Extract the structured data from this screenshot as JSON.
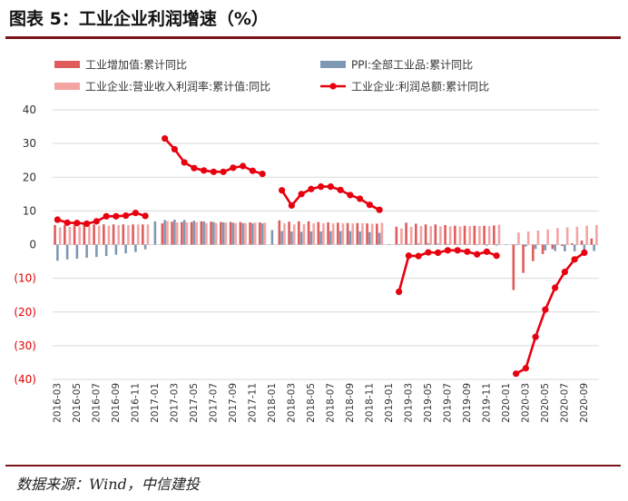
{
  "header": {
    "title": "图表 5：工业企业利润增速（%）"
  },
  "footer": {
    "source": "数据来源：Wind，中信建投"
  },
  "colors": {
    "industrial_value_added": "#e05c5c",
    "ppi": "#7f98b4",
    "revenue_profit_rate": "#f4a3a3",
    "total_profit": "#e8000f",
    "negative_tick": "#e00000",
    "positive_tick": "#333333",
    "grid": "#d9d9d9"
  },
  "chart_data": {
    "type": "bar",
    "title": "工业企业利润增速（%）",
    "ylim": [
      -40,
      40
    ],
    "yticks": [
      {
        "value": 40,
        "label": "40"
      },
      {
        "value": 30,
        "label": "30"
      },
      {
        "value": 20,
        "label": "20"
      },
      {
        "value": 10,
        "label": "10"
      },
      {
        "value": 0,
        "label": "0"
      },
      {
        "value": -10,
        "label": "(10)"
      },
      {
        "value": -20,
        "label": "(20)"
      },
      {
        "value": -30,
        "label": "(30)"
      },
      {
        "value": -40,
        "label": "(40)"
      }
    ],
    "grid": true,
    "legend_position": "top",
    "x": [
      "2016-03",
      "2016-04",
      "2016-05",
      "2016-06",
      "2016-07",
      "2016-08",
      "2016-09",
      "2016-10",
      "2016-11",
      "2016-12",
      "2017-01",
      "2017-02",
      "2017-03",
      "2017-04",
      "2017-05",
      "2017-06",
      "2017-07",
      "2017-08",
      "2017-09",
      "2017-10",
      "2017-11",
      "2017-12",
      "2018-01",
      "2018-02",
      "2018-03",
      "2018-04",
      "2018-05",
      "2018-06",
      "2018-07",
      "2018-08",
      "2018-09",
      "2018-10",
      "2018-11",
      "2018-12",
      "2019-01",
      "2019-02",
      "2019-03",
      "2019-04",
      "2019-05",
      "2019-06",
      "2019-07",
      "2019-08",
      "2019-09",
      "2019-10",
      "2019-11",
      "2019-12",
      "2020-01",
      "2020-02",
      "2020-03",
      "2020-04",
      "2020-05",
      "2020-06",
      "2020-07",
      "2020-08",
      "2020-09",
      "2020-10"
    ],
    "xtick_labels": [
      "2016-03",
      "2016-05",
      "2016-07",
      "2016-09",
      "2016-11",
      "2017-01",
      "2017-03",
      "2017-05",
      "2017-07",
      "2017-09",
      "2017-11",
      "2018-01",
      "2018-03",
      "2018-05",
      "2018-07",
      "2018-09",
      "2018-11",
      "2019-01",
      "2019-03",
      "2019-05",
      "2019-07",
      "2019-09",
      "2019-11",
      "2020-01",
      "2020-03",
      "2020-05",
      "2020-07",
      "2020-09"
    ],
    "series": [
      {
        "name": "工业增加值:累计同比",
        "type": "bar",
        "values": [
          5.8,
          5.8,
          5.9,
          6.0,
          6.0,
          6.0,
          6.0,
          6.0,
          6.0,
          6.0,
          null,
          6.3,
          6.8,
          6.7,
          6.7,
          6.9,
          6.8,
          6.7,
          6.7,
          6.7,
          6.6,
          6.6,
          null,
          7.2,
          6.8,
          6.9,
          6.9,
          6.7,
          6.6,
          6.5,
          6.4,
          6.4,
          6.3,
          6.2,
          null,
          5.3,
          6.5,
          6.2,
          6.0,
          6.0,
          5.8,
          5.6,
          5.6,
          5.6,
          5.6,
          5.7,
          null,
          -13.5,
          -8.4,
          -4.9,
          -2.8,
          -1.3,
          -0.4,
          0.4,
          1.2,
          1.8
        ]
      },
      {
        "name": "PPI:全部工业品:累计同比",
        "type": "bar",
        "values": [
          -4.8,
          -4.4,
          -4.2,
          -3.9,
          -3.7,
          -3.4,
          -3.0,
          -2.6,
          -2.2,
          -1.4,
          6.9,
          7.3,
          7.4,
          7.3,
          7.1,
          6.9,
          6.7,
          6.6,
          6.5,
          6.4,
          6.3,
          6.3,
          4.3,
          4.0,
          3.9,
          3.8,
          3.9,
          3.9,
          4.0,
          4.0,
          4.0,
          3.9,
          3.7,
          3.5,
          0.1,
          0.1,
          0.2,
          0.3,
          0.4,
          0.3,
          0.2,
          0.0,
          -0.1,
          -0.2,
          -0.3,
          -0.3,
          0.1,
          -0.2,
          -0.6,
          -1.3,
          -1.7,
          -1.9,
          -2.0,
          -2.0,
          -2.0,
          -1.9
        ]
      },
      {
        "name": "工业企业:营业收入利润率:累计值:同比",
        "type": "bar",
        "values": [
          5.1,
          5.3,
          5.4,
          5.6,
          5.6,
          5.6,
          5.8,
          5.8,
          6.0,
          6.0,
          null,
          7.0,
          6.6,
          6.6,
          6.6,
          6.4,
          6.4,
          6.5,
          6.4,
          6.4,
          6.5,
          6.5,
          null,
          6.3,
          6.0,
          6.1,
          6.3,
          6.3,
          6.3,
          6.3,
          6.3,
          6.3,
          6.2,
          6.5,
          null,
          4.8,
          5.3,
          5.5,
          5.5,
          5.4,
          5.4,
          5.4,
          5.5,
          5.5,
          5.5,
          5.9,
          null,
          3.6,
          3.9,
          4.2,
          4.5,
          4.9,
          5.1,
          5.3,
          5.6,
          5.8
        ]
      },
      {
        "name": "工业企业:利润总额:累计同比",
        "type": "line",
        "values": [
          7.4,
          6.5,
          6.4,
          6.2,
          6.9,
          8.4,
          8.4,
          8.6,
          9.4,
          8.5,
          null,
          31.5,
          28.3,
          24.4,
          22.7,
          22.0,
          21.6,
          21.6,
          22.8,
          23.3,
          21.9,
          21.0,
          null,
          16.1,
          11.6,
          15.0,
          16.5,
          17.2,
          17.2,
          16.2,
          14.7,
          13.6,
          11.8,
          10.3,
          null,
          -14.0,
          -3.3,
          -3.4,
          -2.3,
          -2.4,
          -1.7,
          -1.7,
          -2.1,
          -2.9,
          -2.1,
          -3.3,
          null,
          -38.3,
          -36.7,
          -27.4,
          -19.3,
          -12.8,
          -8.1,
          -4.4,
          -2.4,
          null
        ]
      }
    ]
  }
}
